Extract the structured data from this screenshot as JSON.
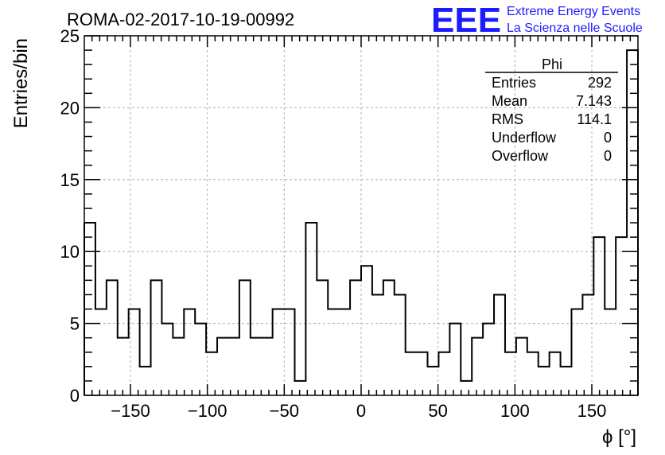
{
  "chart_data": {
    "type": "bar",
    "title": "ROMA-02-2017-10-19-00992",
    "xlabel": "ϕ [°]",
    "ylabel": "Entries/bin",
    "xlim": [
      -180,
      180
    ],
    "ylim": [
      0,
      25
    ],
    "grid": true,
    "bin_width": 7.2,
    "x_ticks": [
      "−150",
      "−100",
      "−50",
      "0",
      "50",
      "100",
      "150"
    ],
    "x_tick_values": [
      -150,
      -100,
      -50,
      0,
      50,
      100,
      150
    ],
    "y_ticks": [
      "0",
      "5",
      "10",
      "15",
      "20",
      "25"
    ],
    "y_tick_values": [
      0,
      5,
      10,
      15,
      20,
      25
    ],
    "values": [
      12,
      6,
      8,
      4,
      6,
      2,
      8,
      5,
      4,
      6,
      5,
      3,
      4,
      4,
      8,
      4,
      4,
      6,
      6,
      1,
      12,
      8,
      6,
      6,
      8,
      9,
      7,
      8,
      7,
      3,
      3,
      2,
      3,
      5,
      1,
      4,
      5,
      7,
      3,
      4,
      3,
      2,
      3,
      2,
      6,
      7,
      11,
      6,
      11,
      24
    ],
    "stats": {
      "name": "Phi",
      "rows": [
        {
          "label": "Entries",
          "value": "292"
        },
        {
          "label": "Mean",
          "value": "7.143"
        },
        {
          "label": "RMS",
          "value": "114.1"
        },
        {
          "label": "Underflow",
          "value": "0"
        },
        {
          "label": "Overflow",
          "value": "0"
        }
      ],
      "position": "top-right"
    }
  },
  "logo": {
    "mark": "EEE",
    "line1": "Extreme Energy Events",
    "line2": "La Scienza nelle Scuole"
  },
  "colors": {
    "histogram": "#000000",
    "grid": "#b0b0b0",
    "logo": "#1c1cff"
  }
}
